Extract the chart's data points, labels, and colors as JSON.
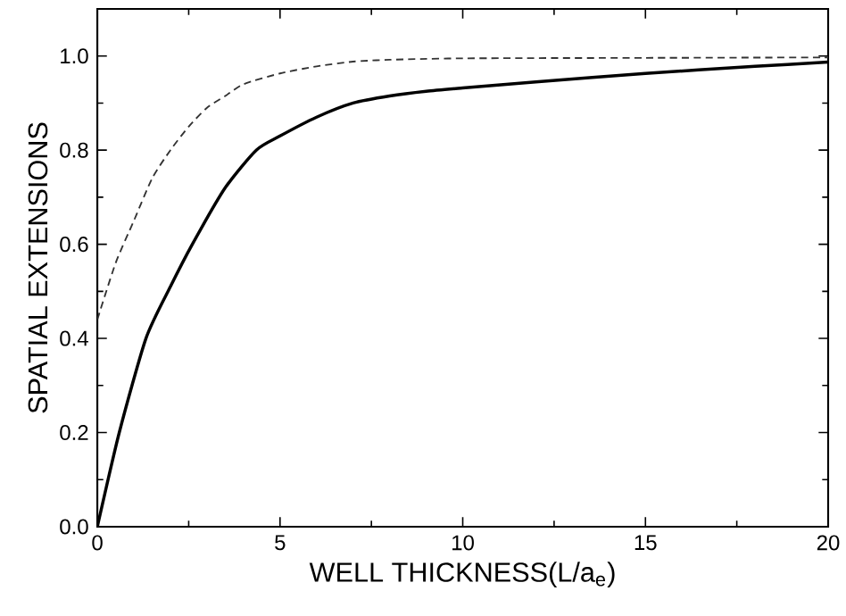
{
  "chart_data": {
    "type": "line",
    "xlabel": "WELL THICKNESS(L/a$_{e}$)",
    "ylabel": "SPATIAL EXTENSIONS",
    "xlim": [
      0,
      20
    ],
    "ylim": [
      0,
      1.1
    ],
    "xticks": [
      0,
      5,
      10,
      15,
      20
    ],
    "yticks": [
      {
        "value": 0,
        "label": "0.0"
      },
      {
        "value": 0.2,
        "label": "0.2"
      },
      {
        "value": 0.4,
        "label": "0.4"
      },
      {
        "value": 0.6,
        "label": "0.6"
      },
      {
        "value": 0.8,
        "label": "0.8"
      },
      {
        "value": 1.0,
        "label": "1.0"
      }
    ],
    "marker": "none",
    "series": [
      {
        "color": "#000000",
        "line_style": "solid",
        "x": [
          0,
          0.6,
          1.33,
          2,
          2.6,
          3.5,
          4.35,
          5,
          6,
          7,
          8,
          9,
          10,
          12,
          15,
          18,
          20
        ],
        "values": [
          0,
          0.2,
          0.4,
          0.51,
          0.6,
          0.72,
          0.8,
          0.83,
          0.87,
          0.9,
          0.915,
          0.925,
          0.932,
          0.945,
          0.963,
          0.978,
          0.987
        ]
      },
      {
        "color": "#333333",
        "line_style": "dashed",
        "x": [
          0,
          0.5,
          1,
          1.5,
          2,
          2.5,
          3,
          3.5,
          4,
          5,
          6,
          7,
          8,
          10,
          15,
          20
        ],
        "values": [
          0.44,
          0.56,
          0.65,
          0.74,
          0.8,
          0.85,
          0.89,
          0.915,
          0.94,
          0.963,
          0.978,
          0.988,
          0.992,
          0.995,
          0.996,
          0.997
        ]
      }
    ]
  }
}
